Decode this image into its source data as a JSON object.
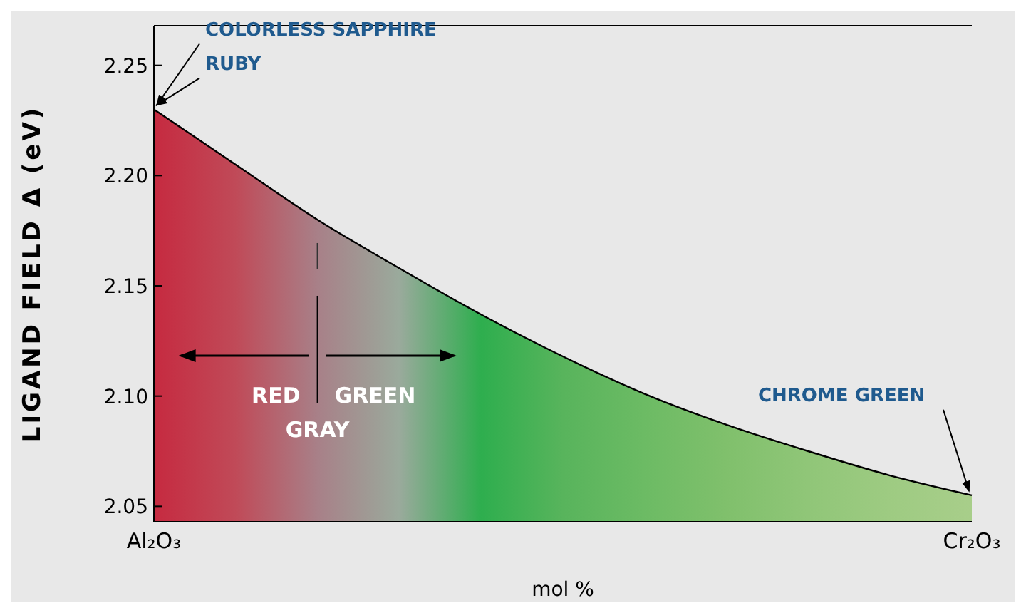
{
  "chart_data": {
    "type": "area",
    "xlabel": "mol %",
    "ylabel": "LIGAND FIELD Δ (eV)",
    "categories": [
      "Al₂O₃",
      null,
      null,
      null,
      null,
      null,
      null,
      null,
      null,
      null,
      "Cr₂O₃"
    ],
    "series": [
      {
        "values": [
          2.23,
          2.205,
          2.18,
          2.158,
          2.137,
          2.118,
          2.101,
          2.087,
          2.075,
          2.064,
          2.055
        ],
        "color": "#000000",
        "colors": [
          "#c62a40",
          "#c04a58",
          "#a88088",
          "#9aaa9c",
          "#2eae4e",
          "#58b45c",
          "#6cbb64",
          "#80c06c",
          "#90c678",
          "#9ecb82",
          "#a8ce8a"
        ]
      }
    ],
    "ylim": [
      2.043,
      2.268
    ],
    "yticks": [
      {
        "value": 2.05,
        "label": "2.05"
      },
      {
        "value": 2.1,
        "label": "2.10"
      },
      {
        "value": 2.15,
        "label": "2.15"
      },
      {
        "value": 2.2,
        "label": "2.20"
      },
      {
        "value": 2.25,
        "label": "2.25"
      }
    ],
    "annotations": [
      {
        "text": "COLORLESS SAPPHIRE",
        "x": "Al₂O₃",
        "y": 2.23
      },
      {
        "text": "RUBY",
        "x": "Al₂O₃",
        "y": 2.23
      },
      {
        "text": "CHROME GREEN",
        "x": "Cr₂O₃",
        "y": 2.055
      },
      "RED",
      "GREEN",
      "GRAY"
    ]
  }
}
